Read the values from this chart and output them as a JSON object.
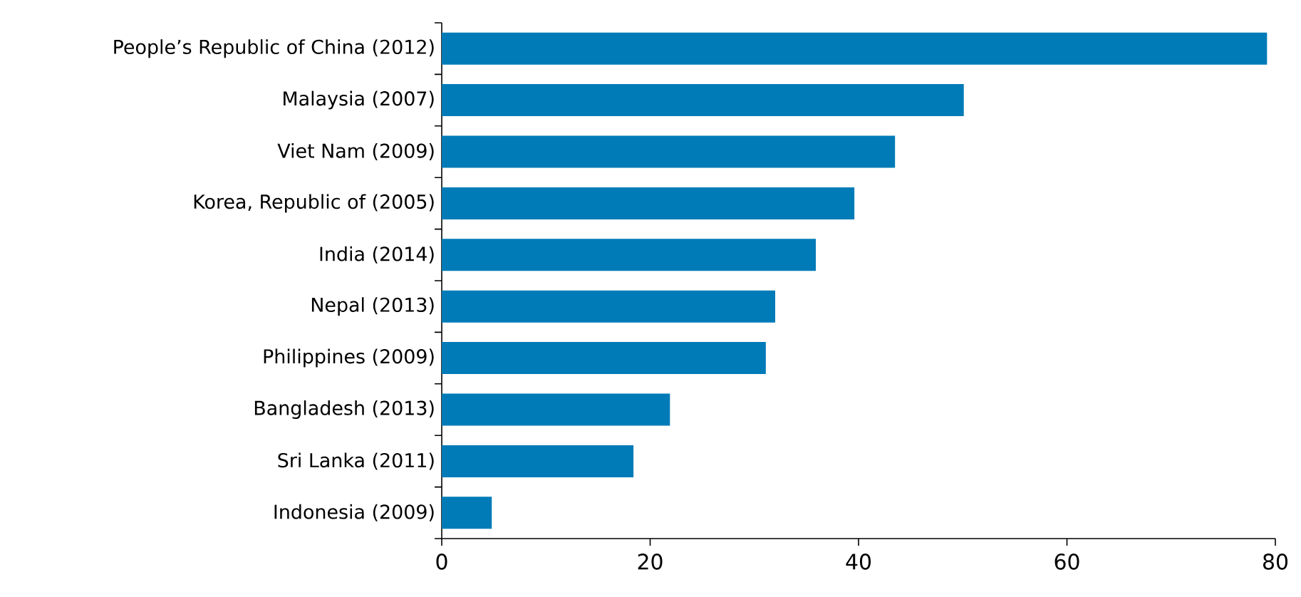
{
  "chart_data": {
    "type": "bar",
    "orientation": "horizontal",
    "categories": [
      "People’s Republic of China (2012)",
      "Malaysia (2007)",
      "Viet Nam (2009)",
      "Korea, Republic of (2005)",
      "India (2014)",
      "Nepal (2013)",
      "Philippines (2009)",
      "Bangladesh (2013)",
      "Sri Lanka (2011)",
      "Indonesia (2009)"
    ],
    "values": [
      79.2,
      50.1,
      43.5,
      39.6,
      35.9,
      32.0,
      31.1,
      21.9,
      18.4,
      4.8
    ],
    "color": "#007bb7",
    "xlim": [
      0,
      80
    ],
    "xticks": [
      0,
      20,
      40,
      60,
      80
    ],
    "grid": false
  }
}
